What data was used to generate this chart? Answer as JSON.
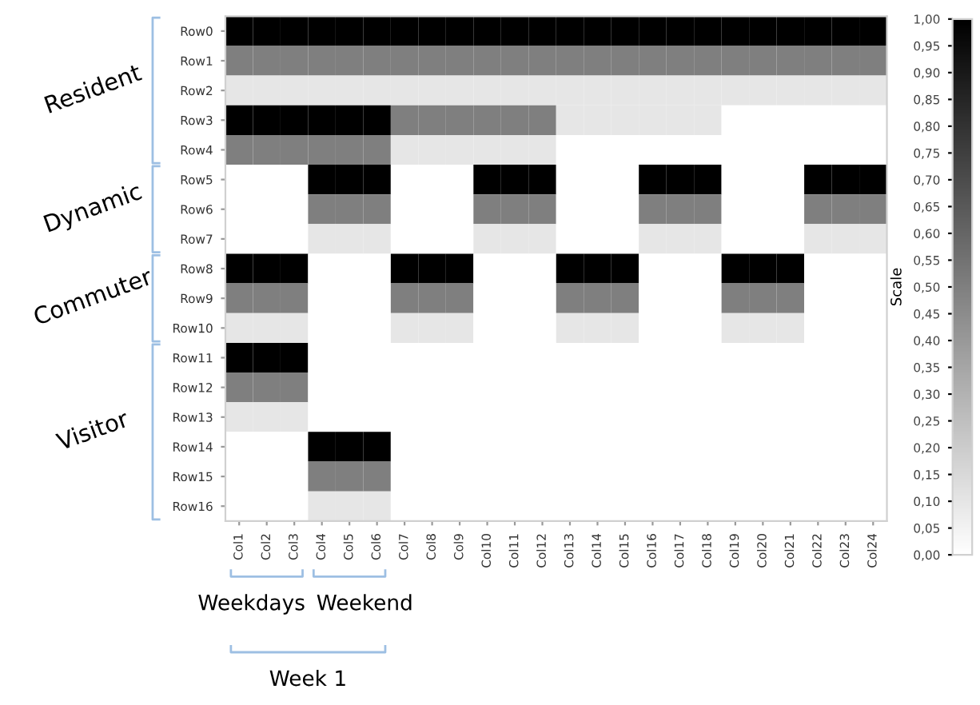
{
  "chart_data": {
    "type": "heatmap",
    "clabel": "Scale",
    "categories": [
      "Col1",
      "Col2",
      "Col3",
      "Col4",
      "Col5",
      "Col6",
      "Col7",
      "Col8",
      "Col9",
      "Col10",
      "Col11",
      "Col12",
      "Col13",
      "Col14",
      "Col15",
      "Col16",
      "Col17",
      "Col18",
      "Col19",
      "Col20",
      "Col21",
      "Col22",
      "Col23",
      "Col24"
    ],
    "y_categories": [
      "Row0",
      "Row1",
      "Row2",
      "Row3",
      "Row4",
      "Row5",
      "Row6",
      "Row7",
      "Row8",
      "Row9",
      "Row10",
      "Row11",
      "Row12",
      "Row13",
      "Row14",
      "Row15",
      "Row16"
    ],
    "cells": [
      [
        1,
        1,
        1,
        1,
        1,
        1,
        1,
        1,
        1,
        1,
        1,
        1,
        1,
        1,
        1,
        1,
        1,
        1,
        1,
        1,
        1,
        1,
        1,
        1
      ],
      [
        0.5,
        0.5,
        0.5,
        0.5,
        0.5,
        0.5,
        0.5,
        0.5,
        0.5,
        0.5,
        0.5,
        0.5,
        0.5,
        0.5,
        0.5,
        0.5,
        0.5,
        0.5,
        0.5,
        0.5,
        0.5,
        0.5,
        0.5,
        0.5
      ],
      [
        0.1,
        0.1,
        0.1,
        0.1,
        0.1,
        0.1,
        0.1,
        0.1,
        0.1,
        0.1,
        0.1,
        0.1,
        0.1,
        0.1,
        0.1,
        0.1,
        0.1,
        0.1,
        0.1,
        0.1,
        0.1,
        0.1,
        0.1,
        0.1
      ],
      [
        1,
        1,
        1,
        1,
        1,
        1,
        0.5,
        0.5,
        0.5,
        0.5,
        0.5,
        0.5,
        0.1,
        0.1,
        0.1,
        0.1,
        0.1,
        0.1,
        0,
        0,
        0,
        0,
        0,
        0
      ],
      [
        0.5,
        0.5,
        0.5,
        0.5,
        0.5,
        0.5,
        0.1,
        0.1,
        0.1,
        0.1,
        0.1,
        0.1,
        0,
        0,
        0,
        0,
        0,
        0,
        0,
        0,
        0,
        0,
        0,
        0
      ],
      [
        0,
        0,
        0,
        1,
        1,
        1,
        0,
        0,
        0,
        1,
        1,
        1,
        0,
        0,
        0,
        1,
        1,
        1,
        0,
        0,
        0,
        1,
        1,
        1
      ],
      [
        0,
        0,
        0,
        0.5,
        0.5,
        0.5,
        0,
        0,
        0,
        0.5,
        0.5,
        0.5,
        0,
        0,
        0,
        0.5,
        0.5,
        0.5,
        0,
        0,
        0,
        0.5,
        0.5,
        0.5
      ],
      [
        0,
        0,
        0,
        0.1,
        0.1,
        0.1,
        0,
        0,
        0,
        0.1,
        0.1,
        0.1,
        0,
        0,
        0,
        0.1,
        0.1,
        0.1,
        0,
        0,
        0,
        0.1,
        0.1,
        0.1
      ],
      [
        1,
        1,
        1,
        0,
        0,
        0,
        1,
        1,
        1,
        0,
        0,
        0,
        1,
        1,
        1,
        0,
        0,
        0,
        1,
        1,
        1,
        0,
        0,
        0
      ],
      [
        0.5,
        0.5,
        0.5,
        0,
        0,
        0,
        0.5,
        0.5,
        0.5,
        0,
        0,
        0,
        0.5,
        0.5,
        0.5,
        0,
        0,
        0,
        0.5,
        0.5,
        0.5,
        0,
        0,
        0
      ],
      [
        0.1,
        0.1,
        0.1,
        0,
        0,
        0,
        0.1,
        0.1,
        0.1,
        0,
        0,
        0,
        0.1,
        0.1,
        0.1,
        0,
        0,
        0,
        0.1,
        0.1,
        0.1,
        0,
        0,
        0
      ],
      [
        1,
        1,
        1,
        0,
        0,
        0,
        0,
        0,
        0,
        0,
        0,
        0,
        0,
        0,
        0,
        0,
        0,
        0,
        0,
        0,
        0,
        0,
        0,
        0
      ],
      [
        0.5,
        0.5,
        0.5,
        0,
        0,
        0,
        0,
        0,
        0,
        0,
        0,
        0,
        0,
        0,
        0,
        0,
        0,
        0,
        0,
        0,
        0,
        0,
        0,
        0
      ],
      [
        0.1,
        0.1,
        0.1,
        0,
        0,
        0,
        0,
        0,
        0,
        0,
        0,
        0,
        0,
        0,
        0,
        0,
        0,
        0,
        0,
        0,
        0,
        0,
        0,
        0
      ],
      [
        0,
        0,
        0,
        1,
        1,
        1,
        0,
        0,
        0,
        0,
        0,
        0,
        0,
        0,
        0,
        0,
        0,
        0,
        0,
        0,
        0,
        0,
        0,
        0
      ],
      [
        0,
        0,
        0,
        0.5,
        0.5,
        0.5,
        0,
        0,
        0,
        0,
        0,
        0,
        0,
        0,
        0,
        0,
        0,
        0,
        0,
        0,
        0,
        0,
        0,
        0
      ],
      [
        0,
        0,
        0,
        0.1,
        0.1,
        0.1,
        0,
        0,
        0,
        0,
        0,
        0,
        0,
        0,
        0,
        0,
        0,
        0,
        0,
        0,
        0,
        0,
        0,
        0
      ]
    ],
    "clim": [
      0,
      1
    ],
    "cticks": [
      {
        "value": 0,
        "label": "0,00"
      },
      {
        "value": 0.05,
        "label": "0,05"
      },
      {
        "value": 0.1,
        "label": "0,10"
      },
      {
        "value": 0.15,
        "label": "0,15"
      },
      {
        "value": 0.2,
        "label": "0,20"
      },
      {
        "value": 0.25,
        "label": "0,25"
      },
      {
        "value": 0.3,
        "label": "0,30"
      },
      {
        "value": 0.35,
        "label": "0,35"
      },
      {
        "value": 0.4,
        "label": "0,40"
      },
      {
        "value": 0.45,
        "label": "0,45"
      },
      {
        "value": 0.5,
        "label": "0,50"
      },
      {
        "value": 0.55,
        "label": "0,55"
      },
      {
        "value": 0.6,
        "label": "0,60"
      },
      {
        "value": 0.65,
        "label": "0,65"
      },
      {
        "value": 0.7,
        "label": "0,70"
      },
      {
        "value": 0.75,
        "label": "0,75"
      },
      {
        "value": 0.8,
        "label": "0,80"
      },
      {
        "value": 0.85,
        "label": "0,85"
      },
      {
        "value": 0.9,
        "label": "0,90"
      },
      {
        "value": 0.95,
        "label": "0,95"
      },
      {
        "value": 1,
        "label": "1,00"
      }
    ],
    "annotations": [
      "Resident",
      "Dynamic",
      "Commuter",
      "Visitor",
      "Weekdays",
      "Weekend",
      "Week 1"
    ]
  }
}
